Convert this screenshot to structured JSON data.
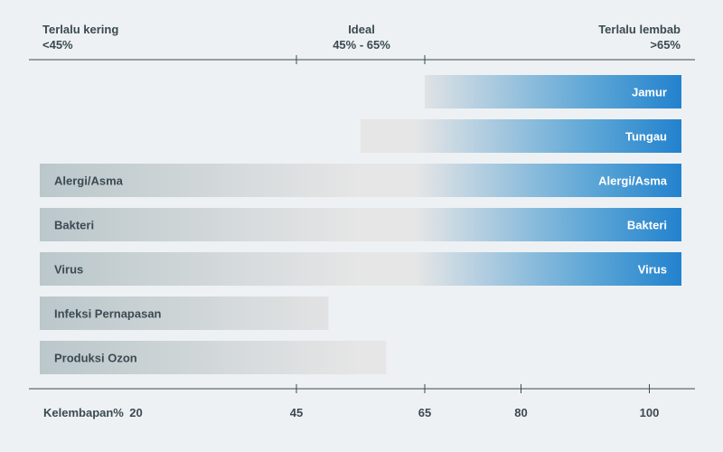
{
  "zones": {
    "dry": {
      "title": "Terlalu kering",
      "range": "<45%"
    },
    "ideal": {
      "title": "Ideal",
      "range": "45% - 65%"
    },
    "humid": {
      "title": "Terlalu lembab",
      "range": ">65%"
    }
  },
  "chart_data": {
    "type": "bar",
    "orientation": "horizontal",
    "x_axis_label": "Kelembapan%",
    "x_ticks": [
      20,
      45,
      65,
      80,
      100
    ],
    "top_ticks": [
      45,
      65
    ],
    "bars": [
      {
        "label": "Jamur",
        "start": 65,
        "end": 105,
        "label_left": "",
        "label_right": "Jamur"
      },
      {
        "label": "Tungau",
        "start": 55,
        "end": 105,
        "label_left": "",
        "label_right": "Tungau"
      },
      {
        "label": "Alergi/Asma",
        "start": 5,
        "end": 105,
        "label_left": "Alergi/Asma",
        "label_right": "Alergi/Asma"
      },
      {
        "label": "Bakteri",
        "start": 5,
        "end": 105,
        "label_left": "Bakteri",
        "label_right": "Bakteri"
      },
      {
        "label": "Virus",
        "start": 5,
        "end": 105,
        "label_left": "Virus",
        "label_right": "Virus"
      },
      {
        "label": "Infeksi Pernapasan",
        "start": 5,
        "end": 50,
        "label_left": "Infeksi Pernapasan",
        "label_right": ""
      },
      {
        "label": "Produksi Ozon",
        "start": 5,
        "end": 59,
        "label_left": "Produksi Ozon",
        "label_right": ""
      }
    ],
    "colors": {
      "dry": "#b9c6ca",
      "neutral": "#e6e6e6",
      "humid": "#1a7ccc",
      "axis": "#3b4a52",
      "bg": "#edf1f3"
    }
  }
}
